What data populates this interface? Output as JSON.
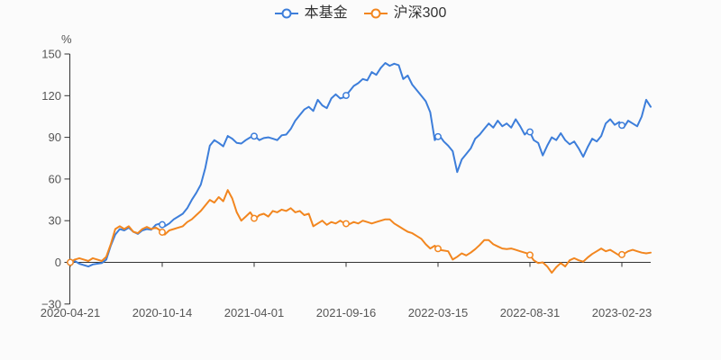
{
  "chart_data": {
    "type": "line",
    "y_unit": "%",
    "ylim": [
      -30,
      150
    ],
    "y_ticks": [
      150,
      120,
      90,
      60,
      30,
      0,
      -30
    ],
    "x_tick_labels": [
      "2020-04-21",
      "2020-10-14",
      "2021-04-01",
      "2021-09-16",
      "2022-03-15",
      "2022-08-31",
      "2023-02-23"
    ],
    "legend_position": "top",
    "grid": false,
    "marker_style": "hollow-circle-at-ticks",
    "series": [
      {
        "name": "本基金",
        "color": "#3d7eda",
        "values": [
          0,
          1,
          -1,
          -2,
          -3,
          -1.5,
          -1,
          -0.5,
          2,
          12,
          20,
          24,
          23,
          25,
          22,
          20.5,
          23,
          24,
          23.5,
          27,
          28,
          26,
          28,
          31,
          33,
          35,
          39,
          45,
          50,
          56,
          68,
          84,
          88,
          86,
          83.5,
          91,
          89,
          86,
          85.5,
          88,
          90,
          91,
          88,
          89.5,
          90,
          89,
          88,
          91.5,
          92,
          96,
          102,
          106,
          110,
          112,
          109,
          117,
          113,
          111,
          118,
          121,
          118,
          119,
          123,
          127,
          129,
          132,
          131,
          137,
          135,
          140,
          143.5,
          141.5,
          143,
          142,
          132,
          134.5,
          128,
          124,
          120,
          116,
          108,
          88,
          91.5,
          87,
          84,
          80,
          65,
          74,
          78,
          82,
          89,
          92,
          96,
          100,
          97,
          102,
          98,
          100,
          97,
          103,
          98,
          92,
          95,
          88,
          86,
          77,
          84,
          90,
          88,
          93,
          88,
          85,
          87,
          82,
          76,
          83,
          89,
          87,
          91,
          100,
          103,
          99,
          101,
          97,
          102,
          100,
          98,
          105,
          117,
          112
        ]
      },
      {
        "name": "沪深300",
        "color": "#f2861f",
        "values": [
          0,
          2,
          3,
          2,
          1,
          3,
          2,
          1,
          4,
          13,
          24,
          26,
          24,
          26,
          22,
          21,
          24,
          25.5,
          24,
          25,
          23,
          20,
          23,
          24,
          25,
          26,
          29,
          31,
          34,
          37,
          41,
          45,
          43,
          47,
          44,
          52,
          46,
          36,
          30,
          33,
          36,
          31,
          34,
          35,
          33,
          37,
          36,
          38,
          37,
          39,
          36,
          37,
          34,
          35,
          26,
          28,
          30,
          27,
          29,
          28,
          30,
          28,
          27.5,
          29,
          28,
          30,
          29,
          28,
          29,
          30,
          31,
          31,
          28,
          26,
          24,
          22,
          21,
          19,
          17,
          13,
          10,
          12,
          9,
          8.5,
          8,
          2,
          4,
          6.5,
          5,
          7,
          9.5,
          12.5,
          16,
          16,
          13,
          11.5,
          10,
          9.5,
          10,
          9,
          8,
          7,
          6,
          1.5,
          -0.5,
          0,
          -3,
          -7.5,
          -3.5,
          -0.5,
          -3,
          1.5,
          3,
          1.5,
          0.5,
          3.5,
          6,
          8,
          10,
          8,
          9,
          7,
          5,
          6,
          8,
          9,
          8,
          7,
          6.5,
          7
        ]
      }
    ]
  },
  "colors": {
    "axis": "#333333",
    "tick_label": "#565656",
    "background": "#fbfbfb"
  }
}
